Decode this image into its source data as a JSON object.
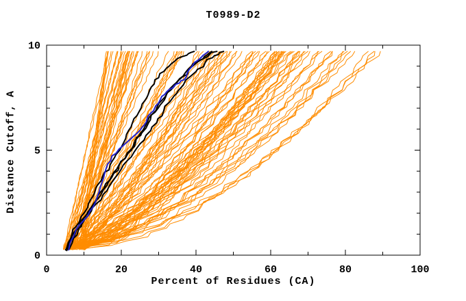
{
  "chart_data": {
    "type": "line",
    "title": "T0989-D2",
    "xlabel": "Percent of Residues (CA)",
    "ylabel": "Distance Cutoff, A",
    "xlim": [
      0,
      100
    ],
    "ylim": [
      0,
      10
    ],
    "x_major_ticks": [
      0,
      20,
      40,
      60,
      80,
      100
    ],
    "x_minor_ticks": [
      10,
      30,
      50,
      70,
      90
    ],
    "y_major_ticks": [
      0,
      5,
      10
    ],
    "y_minor_ticks": [
      1,
      2,
      3,
      4,
      6,
      7,
      8,
      9
    ],
    "grid": false,
    "legend": null,
    "colors": {
      "background": "#ffffff",
      "axis": "#000000",
      "ensemble": "#ff8c00",
      "highlight_black": "#000000",
      "highlight_blue": "#2222cc"
    },
    "series": {
      "model_ensemble": {
        "name": "predicted-models-ensemble",
        "color_key": "ensemble",
        "line_width": 1,
        "count": 110,
        "seed": 20989,
        "start_percent_range": [
          4.5,
          10.5
        ],
        "top_percent_range": [
          16,
          90
        ],
        "cutoff_range": [
          0.25,
          9.7
        ],
        "shape": "monotone jagged, concave toward lower-right"
      },
      "highlighted_black_models": {
        "name": "highlighted-best-models",
        "color_key": "highlight_black",
        "line_width": 2,
        "lines": [
          [
            [
              5.1,
              0.25
            ],
            [
              5.8,
              0.6
            ],
            [
              6.8,
              1.0
            ],
            [
              7.8,
              1.35
            ],
            [
              9.0,
              1.7
            ],
            [
              10.2,
              2.05
            ],
            [
              11.2,
              2.45
            ],
            [
              12.4,
              2.8
            ],
            [
              13.2,
              3.2
            ],
            [
              14.6,
              3.55
            ],
            [
              15.5,
              3.95
            ],
            [
              17.0,
              4.3
            ],
            [
              18.2,
              4.65
            ],
            [
              19.6,
              5.0
            ],
            [
              20.6,
              5.35
            ],
            [
              21.4,
              5.75
            ],
            [
              22.6,
              6.1
            ],
            [
              23.4,
              6.5
            ],
            [
              24.8,
              6.85
            ],
            [
              25.6,
              7.2
            ],
            [
              26.8,
              7.5
            ],
            [
              27.6,
              7.85
            ],
            [
              28.8,
              8.15
            ],
            [
              30.0,
              8.45
            ],
            [
              31.4,
              8.75
            ],
            [
              32.8,
              9.0
            ],
            [
              34.4,
              9.25
            ],
            [
              36.2,
              9.45
            ],
            [
              38.0,
              9.6
            ],
            [
              39.5,
              9.7
            ]
          ],
          [
            [
              5.4,
              0.22
            ],
            [
              6.2,
              0.65
            ],
            [
              7.4,
              1.1
            ],
            [
              8.8,
              1.5
            ],
            [
              10.4,
              1.85
            ],
            [
              11.8,
              2.2
            ],
            [
              13.2,
              2.6
            ],
            [
              14.4,
              3.0
            ],
            [
              15.8,
              3.4
            ],
            [
              17.4,
              3.75
            ],
            [
              18.8,
              4.1
            ],
            [
              20.2,
              4.5
            ],
            [
              21.8,
              4.85
            ],
            [
              23.2,
              5.2
            ],
            [
              24.4,
              5.6
            ],
            [
              25.8,
              5.95
            ],
            [
              27.0,
              6.35
            ],
            [
              28.2,
              6.7
            ],
            [
              29.6,
              7.05
            ],
            [
              31.0,
              7.4
            ],
            [
              32.4,
              7.75
            ],
            [
              34.0,
              8.1
            ],
            [
              35.6,
              8.4
            ],
            [
              37.2,
              8.7
            ],
            [
              38.8,
              9.0
            ],
            [
              40.6,
              9.25
            ],
            [
              42.2,
              9.45
            ],
            [
              43.4,
              9.6
            ],
            [
              44.2,
              9.7
            ]
          ],
          [
            [
              5.7,
              0.28
            ],
            [
              6.6,
              0.75
            ],
            [
              8.0,
              1.2
            ],
            [
              9.6,
              1.6
            ],
            [
              11.0,
              2.0
            ],
            [
              12.2,
              2.35
            ],
            [
              13.8,
              2.7
            ],
            [
              15.2,
              3.1
            ],
            [
              16.6,
              3.5
            ],
            [
              18.0,
              3.9
            ],
            [
              19.4,
              4.25
            ],
            [
              21.0,
              4.6
            ],
            [
              22.4,
              5.0
            ],
            [
              23.8,
              5.35
            ],
            [
              25.2,
              5.7
            ],
            [
              26.6,
              6.05
            ],
            [
              27.8,
              6.45
            ],
            [
              29.0,
              6.8
            ],
            [
              30.4,
              7.15
            ],
            [
              31.8,
              7.5
            ],
            [
              33.2,
              7.85
            ],
            [
              34.8,
              8.2
            ],
            [
              36.4,
              8.5
            ],
            [
              38.0,
              8.8
            ],
            [
              39.8,
              9.1
            ],
            [
              41.8,
              9.35
            ],
            [
              43.6,
              9.55
            ],
            [
              45.6,
              9.7
            ]
          ],
          [
            [
              6.1,
              0.3
            ],
            [
              7.2,
              0.8
            ],
            [
              8.6,
              1.25
            ],
            [
              10.2,
              1.7
            ],
            [
              12.0,
              2.1
            ],
            [
              13.6,
              2.5
            ],
            [
              15.2,
              2.9
            ],
            [
              16.8,
              3.3
            ],
            [
              18.4,
              3.7
            ],
            [
              20.0,
              4.1
            ],
            [
              21.6,
              4.5
            ],
            [
              23.4,
              4.9
            ],
            [
              25.0,
              5.3
            ],
            [
              26.6,
              5.7
            ],
            [
              28.2,
              6.1
            ],
            [
              29.8,
              6.5
            ],
            [
              31.4,
              6.9
            ],
            [
              33.0,
              7.3
            ],
            [
              34.8,
              7.7
            ],
            [
              36.6,
              8.1
            ],
            [
              38.4,
              8.5
            ],
            [
              40.4,
              8.85
            ],
            [
              42.4,
              9.15
            ],
            [
              44.4,
              9.4
            ],
            [
              46.0,
              9.55
            ],
            [
              47.4,
              9.7
            ]
          ]
        ]
      },
      "highlighted_blue_model": {
        "name": "highlighted-reference-model",
        "color_key": "highlight_blue",
        "line_width": 2,
        "points": [
          [
            5.9,
            0.25
          ],
          [
            6.6,
            0.7
          ],
          [
            7.6,
            1.05
          ],
          [
            8.8,
            1.45
          ],
          [
            10.4,
            1.75
          ],
          [
            11.6,
            2.1
          ],
          [
            12.9,
            2.45
          ],
          [
            13.6,
            2.8
          ],
          [
            14.4,
            3.25
          ],
          [
            15.3,
            3.7
          ],
          [
            15.8,
            4.05
          ],
          [
            17.2,
            4.5
          ],
          [
            18.6,
            4.85
          ],
          [
            20.4,
            5.2
          ],
          [
            22.6,
            5.55
          ],
          [
            24.2,
            5.8
          ],
          [
            25.6,
            6.1
          ],
          [
            26.7,
            6.35
          ],
          [
            27.8,
            6.75
          ],
          [
            29.2,
            7.1
          ],
          [
            30.3,
            7.35
          ],
          [
            31.6,
            7.65
          ],
          [
            32.9,
            7.9
          ],
          [
            34.1,
            8.05
          ],
          [
            35.6,
            8.2
          ],
          [
            36.8,
            8.35
          ],
          [
            37.7,
            8.7
          ],
          [
            39.0,
            9.0
          ],
          [
            40.3,
            9.25
          ],
          [
            41.6,
            9.45
          ],
          [
            42.6,
            9.6
          ],
          [
            43.3,
            9.7
          ]
        ]
      }
    }
  }
}
